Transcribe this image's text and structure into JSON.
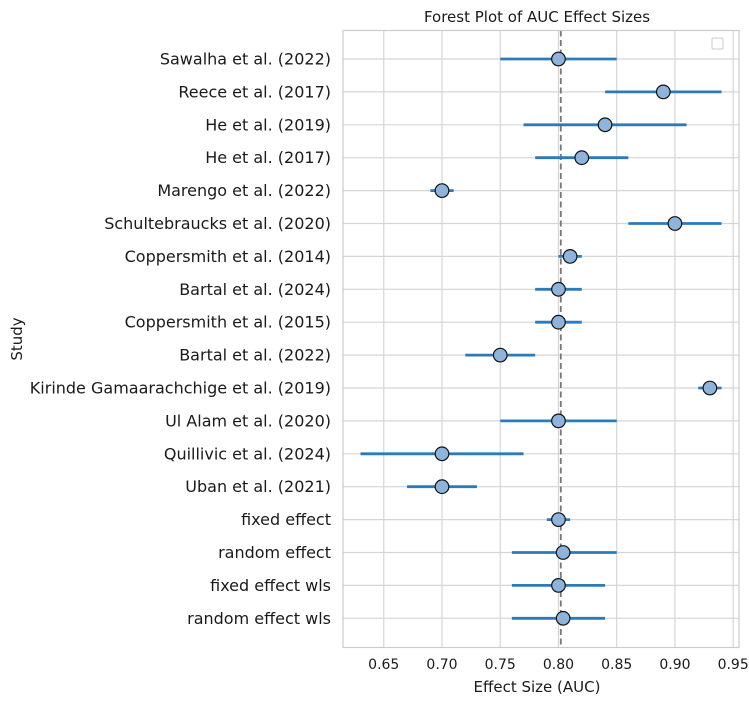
{
  "chart_data": {
    "type": "forest",
    "title": "Forest Plot of AUC Effect Sizes",
    "xlabel": "Effect Size (AUC)",
    "ylabel": "Study",
    "xlim": [
      0.615,
      0.955
    ],
    "xticks": [
      0.65,
      0.7,
      0.75,
      0.8,
      0.85,
      0.9,
      0.95
    ],
    "xtick_labels": [
      "0.65",
      "0.70",
      "0.75",
      "0.80",
      "0.85",
      "0.90",
      "0.95"
    ],
    "reference_line": 0.802,
    "grid": true,
    "legend": "top-right (empty)",
    "colors": {
      "ci_line": "#2b7bba",
      "marker_fill": "#8fb4db",
      "marker_edge": "#111111",
      "reference_line": "#777777",
      "grid": "#d5d5d5"
    },
    "studies": [
      {
        "label": "Sawalha et al. (2022)",
        "effect": 0.8,
        "ci_low": 0.75,
        "ci_high": 0.85
      },
      {
        "label": "Reece et al. (2017)",
        "effect": 0.89,
        "ci_low": 0.84,
        "ci_high": 0.94
      },
      {
        "label": "He et al. (2019)",
        "effect": 0.84,
        "ci_low": 0.77,
        "ci_high": 0.91
      },
      {
        "label": "He et al. (2017)",
        "effect": 0.82,
        "ci_low": 0.78,
        "ci_high": 0.86
      },
      {
        "label": "Marengo et al. (2022)",
        "effect": 0.7,
        "ci_low": 0.69,
        "ci_high": 0.71
      },
      {
        "label": "Schultebraucks et al. (2020)",
        "effect": 0.9,
        "ci_low": 0.86,
        "ci_high": 0.94
      },
      {
        "label": "Coppersmith et al. (2014)",
        "effect": 0.81,
        "ci_low": 0.8,
        "ci_high": 0.82
      },
      {
        "label": "Bartal et al. (2024)",
        "effect": 0.8,
        "ci_low": 0.78,
        "ci_high": 0.82
      },
      {
        "label": "Coppersmith et al. (2015)",
        "effect": 0.8,
        "ci_low": 0.78,
        "ci_high": 0.82
      },
      {
        "label": "Bartal et al. (2022)",
        "effect": 0.75,
        "ci_low": 0.72,
        "ci_high": 0.78
      },
      {
        "label": "Kirinde Gamaarachchige et al. (2019)",
        "effect": 0.93,
        "ci_low": 0.92,
        "ci_high": 0.94
      },
      {
        "label": "Ul Alam et al. (2020)",
        "effect": 0.8,
        "ci_low": 0.75,
        "ci_high": 0.85
      },
      {
        "label": "Quillivic et al. (2024)",
        "effect": 0.7,
        "ci_low": 0.63,
        "ci_high": 0.77
      },
      {
        "label": "Uban et al. (2021)",
        "effect": 0.7,
        "ci_low": 0.67,
        "ci_high": 0.73
      },
      {
        "label": "fixed effect",
        "effect": 0.8,
        "ci_low": 0.79,
        "ci_high": 0.81
      },
      {
        "label": "random effect",
        "effect": 0.804,
        "ci_low": 0.76,
        "ci_high": 0.85
      },
      {
        "label": "fixed effect wls",
        "effect": 0.8,
        "ci_low": 0.76,
        "ci_high": 0.84
      },
      {
        "label": "random effect wls",
        "effect": 0.804,
        "ci_low": 0.76,
        "ci_high": 0.84
      }
    ]
  }
}
